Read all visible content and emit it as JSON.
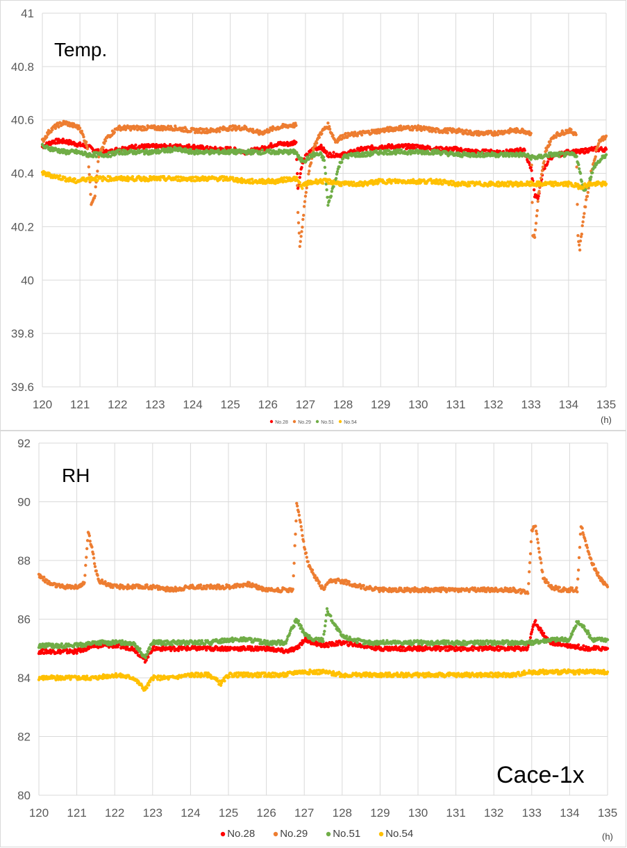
{
  "chart_data": [
    {
      "type": "scatter",
      "label": "Temp.",
      "unit_label": "(h)",
      "xlim": [
        120,
        135
      ],
      "ylim": [
        39.6,
        41
      ],
      "x_ticks": [
        "120",
        "121",
        "122",
        "123",
        "124",
        "125",
        "126",
        "127",
        "128",
        "129",
        "130",
        "131",
        "132",
        "133",
        "134",
        "135"
      ],
      "y_ticks": [
        "41",
        "40.8",
        "40.6",
        "40.4",
        "40.2",
        "40",
        "39.8",
        "39.6"
      ],
      "grid": true,
      "legend_position": "bottom",
      "series": [
        {
          "name": "No.28",
          "color": "#ff0000",
          "x": [
            120.0,
            120.3,
            120.6,
            120.9,
            121.2,
            121.5,
            121.8,
            122.0,
            122.5,
            123.0,
            123.5,
            124.0,
            124.5,
            125.0,
            125.4,
            125.8,
            126.2,
            126.6,
            126.75,
            126.8,
            126.9,
            127.0,
            127.2,
            127.4,
            127.6,
            127.8,
            128.0,
            128.5,
            129.0,
            129.5,
            130.0,
            130.5,
            131.0,
            131.5,
            132.0,
            132.5,
            132.8,
            133.0,
            133.1,
            133.2,
            133.3,
            133.5,
            134.0,
            134.3,
            134.6,
            135.0
          ],
          "y": [
            40.5,
            40.52,
            40.52,
            40.51,
            40.5,
            40.48,
            40.48,
            40.49,
            40.5,
            40.5,
            40.5,
            40.5,
            40.49,
            40.49,
            40.48,
            40.49,
            40.51,
            40.51,
            40.52,
            40.34,
            40.43,
            40.46,
            40.49,
            40.5,
            40.47,
            40.47,
            40.47,
            40.49,
            40.5,
            40.5,
            40.5,
            40.49,
            40.49,
            40.48,
            40.48,
            40.48,
            40.49,
            40.42,
            40.32,
            40.31,
            40.4,
            40.46,
            40.48,
            40.48,
            40.49,
            40.49
          ]
        },
        {
          "name": "No.29",
          "color": "#ed7d31",
          "x": [
            120.0,
            120.2,
            120.4,
            120.6,
            120.8,
            121.0,
            121.2,
            121.3,
            121.4,
            121.5,
            121.7,
            122.0,
            122.5,
            123.0,
            123.5,
            124.0,
            124.5,
            125.0,
            125.4,
            125.8,
            126.2,
            126.6,
            126.75,
            126.8,
            126.85,
            126.9,
            127.0,
            127.2,
            127.4,
            127.6,
            127.8,
            128.0,
            128.5,
            129.0,
            129.5,
            130.0,
            130.5,
            131.0,
            131.5,
            132.0,
            132.5,
            132.8,
            133.0,
            133.05,
            133.1,
            133.2,
            133.4,
            133.6,
            134.0,
            134.2,
            134.25,
            134.3,
            134.4,
            134.6,
            134.8,
            135.0
          ],
          "y": [
            40.52,
            40.56,
            40.58,
            40.59,
            40.58,
            40.57,
            40.5,
            40.29,
            40.32,
            40.46,
            40.53,
            40.57,
            40.57,
            40.57,
            40.57,
            40.56,
            40.56,
            40.57,
            40.57,
            40.55,
            40.57,
            40.58,
            40.58,
            40.25,
            40.13,
            40.18,
            40.32,
            40.49,
            40.55,
            40.58,
            40.52,
            40.54,
            40.55,
            40.56,
            40.57,
            40.57,
            40.56,
            40.56,
            40.55,
            40.55,
            40.56,
            40.56,
            40.55,
            40.17,
            40.16,
            40.32,
            40.49,
            40.54,
            40.56,
            40.55,
            40.16,
            40.12,
            40.24,
            40.4,
            40.52,
            40.54
          ]
        },
        {
          "name": "No.51",
          "color": "#70ad47",
          "x": [
            120.0,
            120.3,
            120.6,
            120.9,
            121.2,
            121.5,
            121.8,
            122.0,
            122.5,
            123.0,
            123.5,
            124.0,
            124.5,
            125.0,
            125.4,
            125.8,
            126.2,
            126.6,
            126.75,
            126.85,
            127.0,
            127.2,
            127.4,
            127.5,
            127.6,
            127.7,
            127.8,
            127.9,
            128.0,
            128.3,
            128.6,
            129.0,
            129.5,
            130.0,
            130.5,
            131.0,
            131.5,
            132.0,
            132.5,
            132.8,
            133.0,
            133.2,
            133.5,
            134.0,
            134.2,
            134.4,
            134.5,
            134.7,
            135.0
          ],
          "y": [
            40.5,
            40.49,
            40.48,
            40.48,
            40.47,
            40.47,
            40.47,
            40.48,
            40.48,
            40.48,
            40.49,
            40.48,
            40.48,
            40.48,
            40.48,
            40.48,
            40.48,
            40.48,
            40.48,
            40.45,
            40.45,
            40.47,
            40.47,
            40.45,
            40.28,
            40.33,
            40.38,
            40.43,
            40.46,
            40.47,
            40.47,
            40.48,
            40.48,
            40.48,
            40.48,
            40.47,
            40.47,
            40.47,
            40.47,
            40.47,
            40.46,
            40.46,
            40.47,
            40.47,
            40.47,
            40.34,
            40.35,
            40.43,
            40.47
          ]
        },
        {
          "name": "No.54",
          "color": "#ffc000",
          "x": [
            120.0,
            120.3,
            120.6,
            120.9,
            121.2,
            121.5,
            121.8,
            122.0,
            122.5,
            123.0,
            123.5,
            124.0,
            124.5,
            125.0,
            125.4,
            125.8,
            126.2,
            126.6,
            126.75,
            126.9,
            127.0,
            127.3,
            127.6,
            128.0,
            128.5,
            129.0,
            129.5,
            130.0,
            130.5,
            131.0,
            131.5,
            132.0,
            132.5,
            133.0,
            133.5,
            134.0,
            134.3,
            134.6,
            135.0
          ],
          "y": [
            40.4,
            40.39,
            40.38,
            40.37,
            40.38,
            40.38,
            40.38,
            40.38,
            40.38,
            40.38,
            40.38,
            40.38,
            40.38,
            40.38,
            40.37,
            40.37,
            40.37,
            40.38,
            40.38,
            40.35,
            40.36,
            40.37,
            40.37,
            40.36,
            40.36,
            40.37,
            40.37,
            40.37,
            40.37,
            40.36,
            40.36,
            40.36,
            40.36,
            40.36,
            40.36,
            40.36,
            40.35,
            40.36,
            40.36
          ]
        }
      ]
    },
    {
      "type": "scatter",
      "label": "RH",
      "caption": "Cace-1x",
      "unit_label": "(h)",
      "xlim": [
        120,
        135
      ],
      "ylim": [
        80,
        92
      ],
      "x_ticks": [
        "120",
        "121",
        "122",
        "123",
        "124",
        "125",
        "126",
        "127",
        "128",
        "129",
        "130",
        "131",
        "132",
        "133",
        "134",
        "135"
      ],
      "y_ticks": [
        "92",
        "90",
        "88",
        "86",
        "84",
        "82",
        "80"
      ],
      "grid": true,
      "legend_position": "bottom",
      "series": [
        {
          "name": "No.28",
          "color": "#ff0000",
          "x": [
            120.0,
            120.5,
            121.0,
            121.5,
            122.0,
            122.5,
            122.8,
            123.0,
            123.5,
            124.0,
            124.5,
            125.0,
            125.5,
            126.0,
            126.5,
            126.8,
            127.0,
            127.5,
            128.0,
            128.5,
            129.0,
            129.5,
            130.0,
            130.5,
            131.0,
            131.5,
            132.0,
            132.5,
            132.9,
            133.0,
            133.1,
            133.3,
            133.5,
            134.0,
            134.5,
            135.0
          ],
          "y": [
            84.9,
            84.9,
            84.9,
            85.1,
            85.1,
            85.0,
            84.6,
            85.0,
            85.0,
            85.0,
            85.0,
            85.0,
            85.0,
            85.0,
            84.9,
            85.0,
            85.3,
            85.1,
            85.2,
            85.1,
            85.0,
            85.0,
            85.0,
            85.0,
            85.0,
            85.0,
            85.0,
            85.0,
            85.0,
            85.6,
            85.9,
            85.5,
            85.2,
            85.1,
            85.0,
            85.0
          ]
        },
        {
          "name": "No.29",
          "color": "#ed7d31",
          "x": [
            120.0,
            120.3,
            120.6,
            121.0,
            121.2,
            121.3,
            121.4,
            121.5,
            121.6,
            121.8,
            122.0,
            122.5,
            123.0,
            123.5,
            124.0,
            124.5,
            125.0,
            125.5,
            126.0,
            126.5,
            126.7,
            126.8,
            126.9,
            127.0,
            127.1,
            127.3,
            127.5,
            127.7,
            128.0,
            128.5,
            129.0,
            129.5,
            130.0,
            130.5,
            131.0,
            131.5,
            132.0,
            132.5,
            132.9,
            133.0,
            133.1,
            133.2,
            133.3,
            133.5,
            133.8,
            134.0,
            134.2,
            134.3,
            134.4,
            134.6,
            134.8,
            135.0
          ],
          "y": [
            87.5,
            87.2,
            87.1,
            87.1,
            87.2,
            89.0,
            88.4,
            87.7,
            87.3,
            87.2,
            87.1,
            87.1,
            87.1,
            87.0,
            87.1,
            87.1,
            87.1,
            87.2,
            87.0,
            87.0,
            87.0,
            89.9,
            89.3,
            88.5,
            87.9,
            87.4,
            87.0,
            87.3,
            87.3,
            87.1,
            87.0,
            87.0,
            87.0,
            87.0,
            87.0,
            87.0,
            87.0,
            87.0,
            86.9,
            89.0,
            89.2,
            88.3,
            87.4,
            87.1,
            87.0,
            87.0,
            87.0,
            89.2,
            88.7,
            87.9,
            87.4,
            87.1
          ]
        },
        {
          "name": "No.51",
          "color": "#70ad47",
          "x": [
            120.0,
            120.5,
            121.0,
            121.5,
            122.0,
            122.5,
            122.8,
            123.0,
            123.5,
            124.0,
            124.5,
            125.0,
            125.5,
            126.0,
            126.5,
            126.8,
            127.0,
            127.2,
            127.5,
            127.6,
            127.8,
            128.0,
            128.3,
            128.6,
            129.0,
            129.5,
            130.0,
            130.5,
            131.0,
            131.5,
            132.0,
            132.5,
            133.0,
            133.5,
            134.0,
            134.2,
            134.4,
            134.6,
            135.0
          ],
          "y": [
            85.1,
            85.1,
            85.1,
            85.2,
            85.2,
            85.2,
            84.7,
            85.2,
            85.2,
            85.2,
            85.2,
            85.3,
            85.3,
            85.2,
            85.2,
            86.0,
            85.5,
            85.3,
            85.3,
            86.3,
            85.8,
            85.4,
            85.3,
            85.2,
            85.2,
            85.2,
            85.2,
            85.2,
            85.2,
            85.2,
            85.2,
            85.2,
            85.2,
            85.3,
            85.3,
            85.9,
            85.7,
            85.3,
            85.3
          ]
        },
        {
          "name": "No.54",
          "color": "#ffc000",
          "x": [
            120.0,
            120.5,
            121.0,
            121.5,
            122.0,
            122.5,
            122.8,
            123.0,
            123.5,
            124.0,
            124.5,
            124.8,
            125.0,
            125.5,
            126.0,
            126.5,
            126.8,
            127.0,
            127.5,
            128.0,
            128.5,
            129.0,
            129.5,
            130.0,
            130.5,
            131.0,
            131.5,
            132.0,
            132.5,
            133.0,
            133.5,
            134.0,
            134.5,
            135.0
          ],
          "y": [
            84.0,
            84.0,
            84.0,
            84.0,
            84.1,
            84.0,
            83.6,
            84.0,
            84.0,
            84.1,
            84.1,
            83.8,
            84.1,
            84.1,
            84.1,
            84.1,
            84.2,
            84.2,
            84.2,
            84.1,
            84.1,
            84.1,
            84.1,
            84.1,
            84.1,
            84.1,
            84.1,
            84.1,
            84.1,
            84.2,
            84.2,
            84.2,
            84.2,
            84.2
          ]
        }
      ]
    }
  ]
}
